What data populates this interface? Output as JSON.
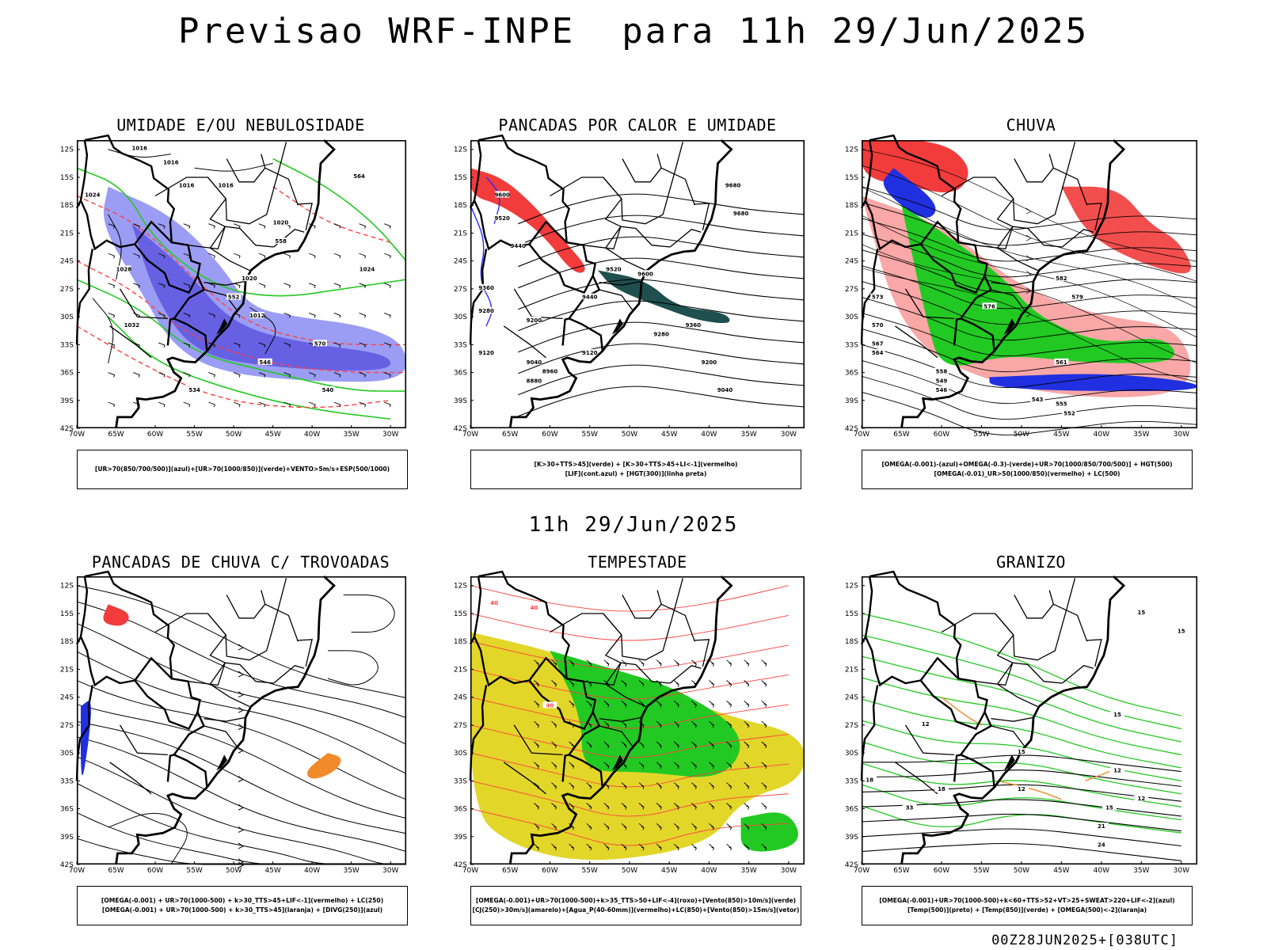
{
  "main_title": "Previsao WRF-INPE  para 11h 29/Jun/2025",
  "mid_title": "11h 29/Jun/2025",
  "footer": "00Z28JUN2025+[038UTC]",
  "axes": {
    "lat_labels": [
      "12S",
      "15S",
      "18S",
      "21S",
      "24S",
      "27S",
      "30S",
      "33S",
      "36S",
      "39S",
      "42S"
    ],
    "lon_labels": [
      "70W",
      "65W",
      "60W",
      "55W",
      "50W",
      "45W",
      "40W",
      "35W",
      "30W"
    ]
  },
  "panels": [
    {
      "title": "UMIDADE E/OU NEBULOSIDADE",
      "legend": [
        "[UR>70(850/700/500)](azul)+[UR>70(1000/850)](verde)+VENTO>5m/s+ESP(500/1000)"
      ],
      "contour_labels": [
        "1016",
        "1016",
        "1016",
        "1016",
        "1020",
        "1024",
        "1028",
        "1032",
        "1020",
        "1024",
        "1012",
        "570",
        "564",
        "558",
        "552",
        "546",
        "540",
        "534"
      ]
    },
    {
      "title": "PANCADAS POR CALOR E UMIDADE",
      "legend": [
        "[K>30+TTS>45](verde) + [K>30+TTS>45+LI<-1](vermelho)",
        "[LIF](cont.azul) + [HGT(300)](linha preta)"
      ],
      "contour_labels": [
        "9680",
        "9680",
        "9600",
        "9600",
        "9520",
        "9520",
        "9440",
        "9440",
        "9360",
        "9360",
        "9280",
        "9280",
        "9200",
        "9200",
        "9120",
        "9120",
        "9040",
        "9040",
        "8960",
        "8880"
      ]
    },
    {
      "title": "CHUVA",
      "legend": [
        "[OMEGA(-0.001)-(azul)+OMEGA(-0.3)-(verde)+UR>70(1000/850/700/500)] + HGT(500)",
        "[OMEGA(-0.01)_UR>50(1000/850)(vermelho) + LC(500)"
      ],
      "contour_labels": [
        "582",
        "579",
        "576",
        "573",
        "570",
        "567",
        "564",
        "561",
        "558",
        "555",
        "552",
        "549",
        "546",
        "543"
      ]
    },
    {
      "title": "PANCADAS DE CHUVA C/ TROVOADAS",
      "legend": [
        "[OMEGA(-0.001) + UR>70(1000-500) + k>30_TTS>45+LIF<-1](vermelho) + LC(250)",
        "[OMEGA(-0.001) + UR>70(1000-500) + k>30_TTS>45](laranja) + [DIVG(250)](azul)"
      ],
      "contour_labels": []
    },
    {
      "title": "TEMPESTADE",
      "legend": [
        "[OMEGA(-0.001)+UR>70(1000-500)+k>35_TTS>50+LIF<-4](roxo)+[Vento(850)>10m/s](verde)",
        "[CJ(250)>30m/s](amarelo)+[Agua_P(40-60mm)](vermelho)+LC(850)+[Vento(850)>15m/s](vetor)"
      ],
      "contour_labels": [
        "40",
        "40",
        "40"
      ]
    },
    {
      "title": "GRANIZO",
      "legend": [
        "[OMEGA(-0.001)+UR>70(1000-500)+k<60+TTS>52+VT>25+SWEAT>220+LIF<-2](azul)",
        "[Temp(500)](preto) + [Temp(850)](verde) + [OMEGA(500)<-2](laranja)"
      ],
      "contour_labels": [
        "15",
        "15",
        "12",
        "12",
        "12",
        "15",
        "15",
        "18",
        "18",
        "12",
        "15",
        "21",
        "24",
        "33"
      ]
    }
  ],
  "colors": {
    "blue_shade": "#8a8cf2",
    "blue_dark": "#3a2fd6",
    "green": "#22c922",
    "red": "#f23b3b",
    "orange": "#f08a2a",
    "yellow": "#e2d629",
    "teal": "#1f4f4f",
    "contour_red": "#ff4040"
  }
}
